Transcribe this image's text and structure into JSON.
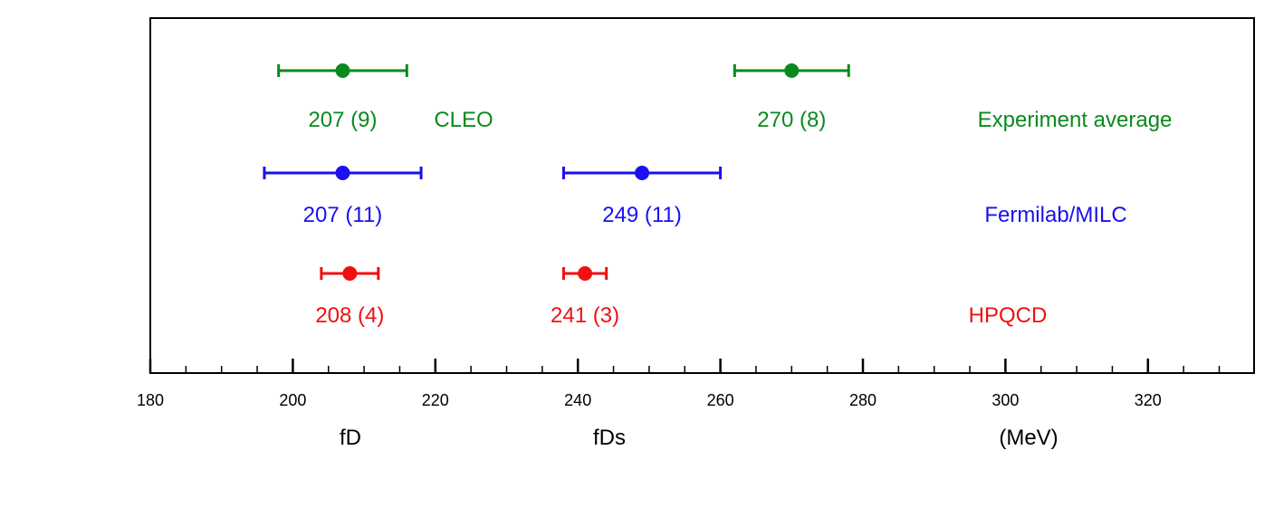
{
  "chart_data": {
    "type": "scatter",
    "subtype": "error-bar comparison",
    "x_axis": {
      "range": [
        180,
        335
      ],
      "major_ticks": [
        180,
        200,
        220,
        240,
        260,
        280,
        300,
        320
      ],
      "tick_labels": [
        "180",
        "200",
        "220",
        "240",
        "260",
        "280",
        "300",
        "320"
      ],
      "minor_tick_step": 5,
      "labels": [
        "fD",
        "fDs",
        "(MeV)"
      ]
    },
    "grid": false,
    "legend": "none",
    "series": [
      {
        "name": "CLEO",
        "name_label": "Experiment average",
        "color": "#0a8a1e",
        "points": [
          {
            "x": 207,
            "err": 9,
            "label": "207 (9)"
          },
          {
            "x": 270,
            "err": 8,
            "label": "270 (8)"
          }
        ]
      },
      {
        "name": "Fermilab/MILC",
        "color": "#1a10f0",
        "points": [
          {
            "x": 207,
            "err": 11,
            "label": "207 (11)"
          },
          {
            "x": 249,
            "err": 11,
            "label": "249 (11)"
          }
        ]
      },
      {
        "name": "HPQCD",
        "color": "#f01010",
        "points": [
          {
            "x": 208,
            "err": 4,
            "label": "208 (4)"
          },
          {
            "x": 241,
            "err": 3,
            "label": "241 (3)"
          }
        ]
      }
    ]
  }
}
